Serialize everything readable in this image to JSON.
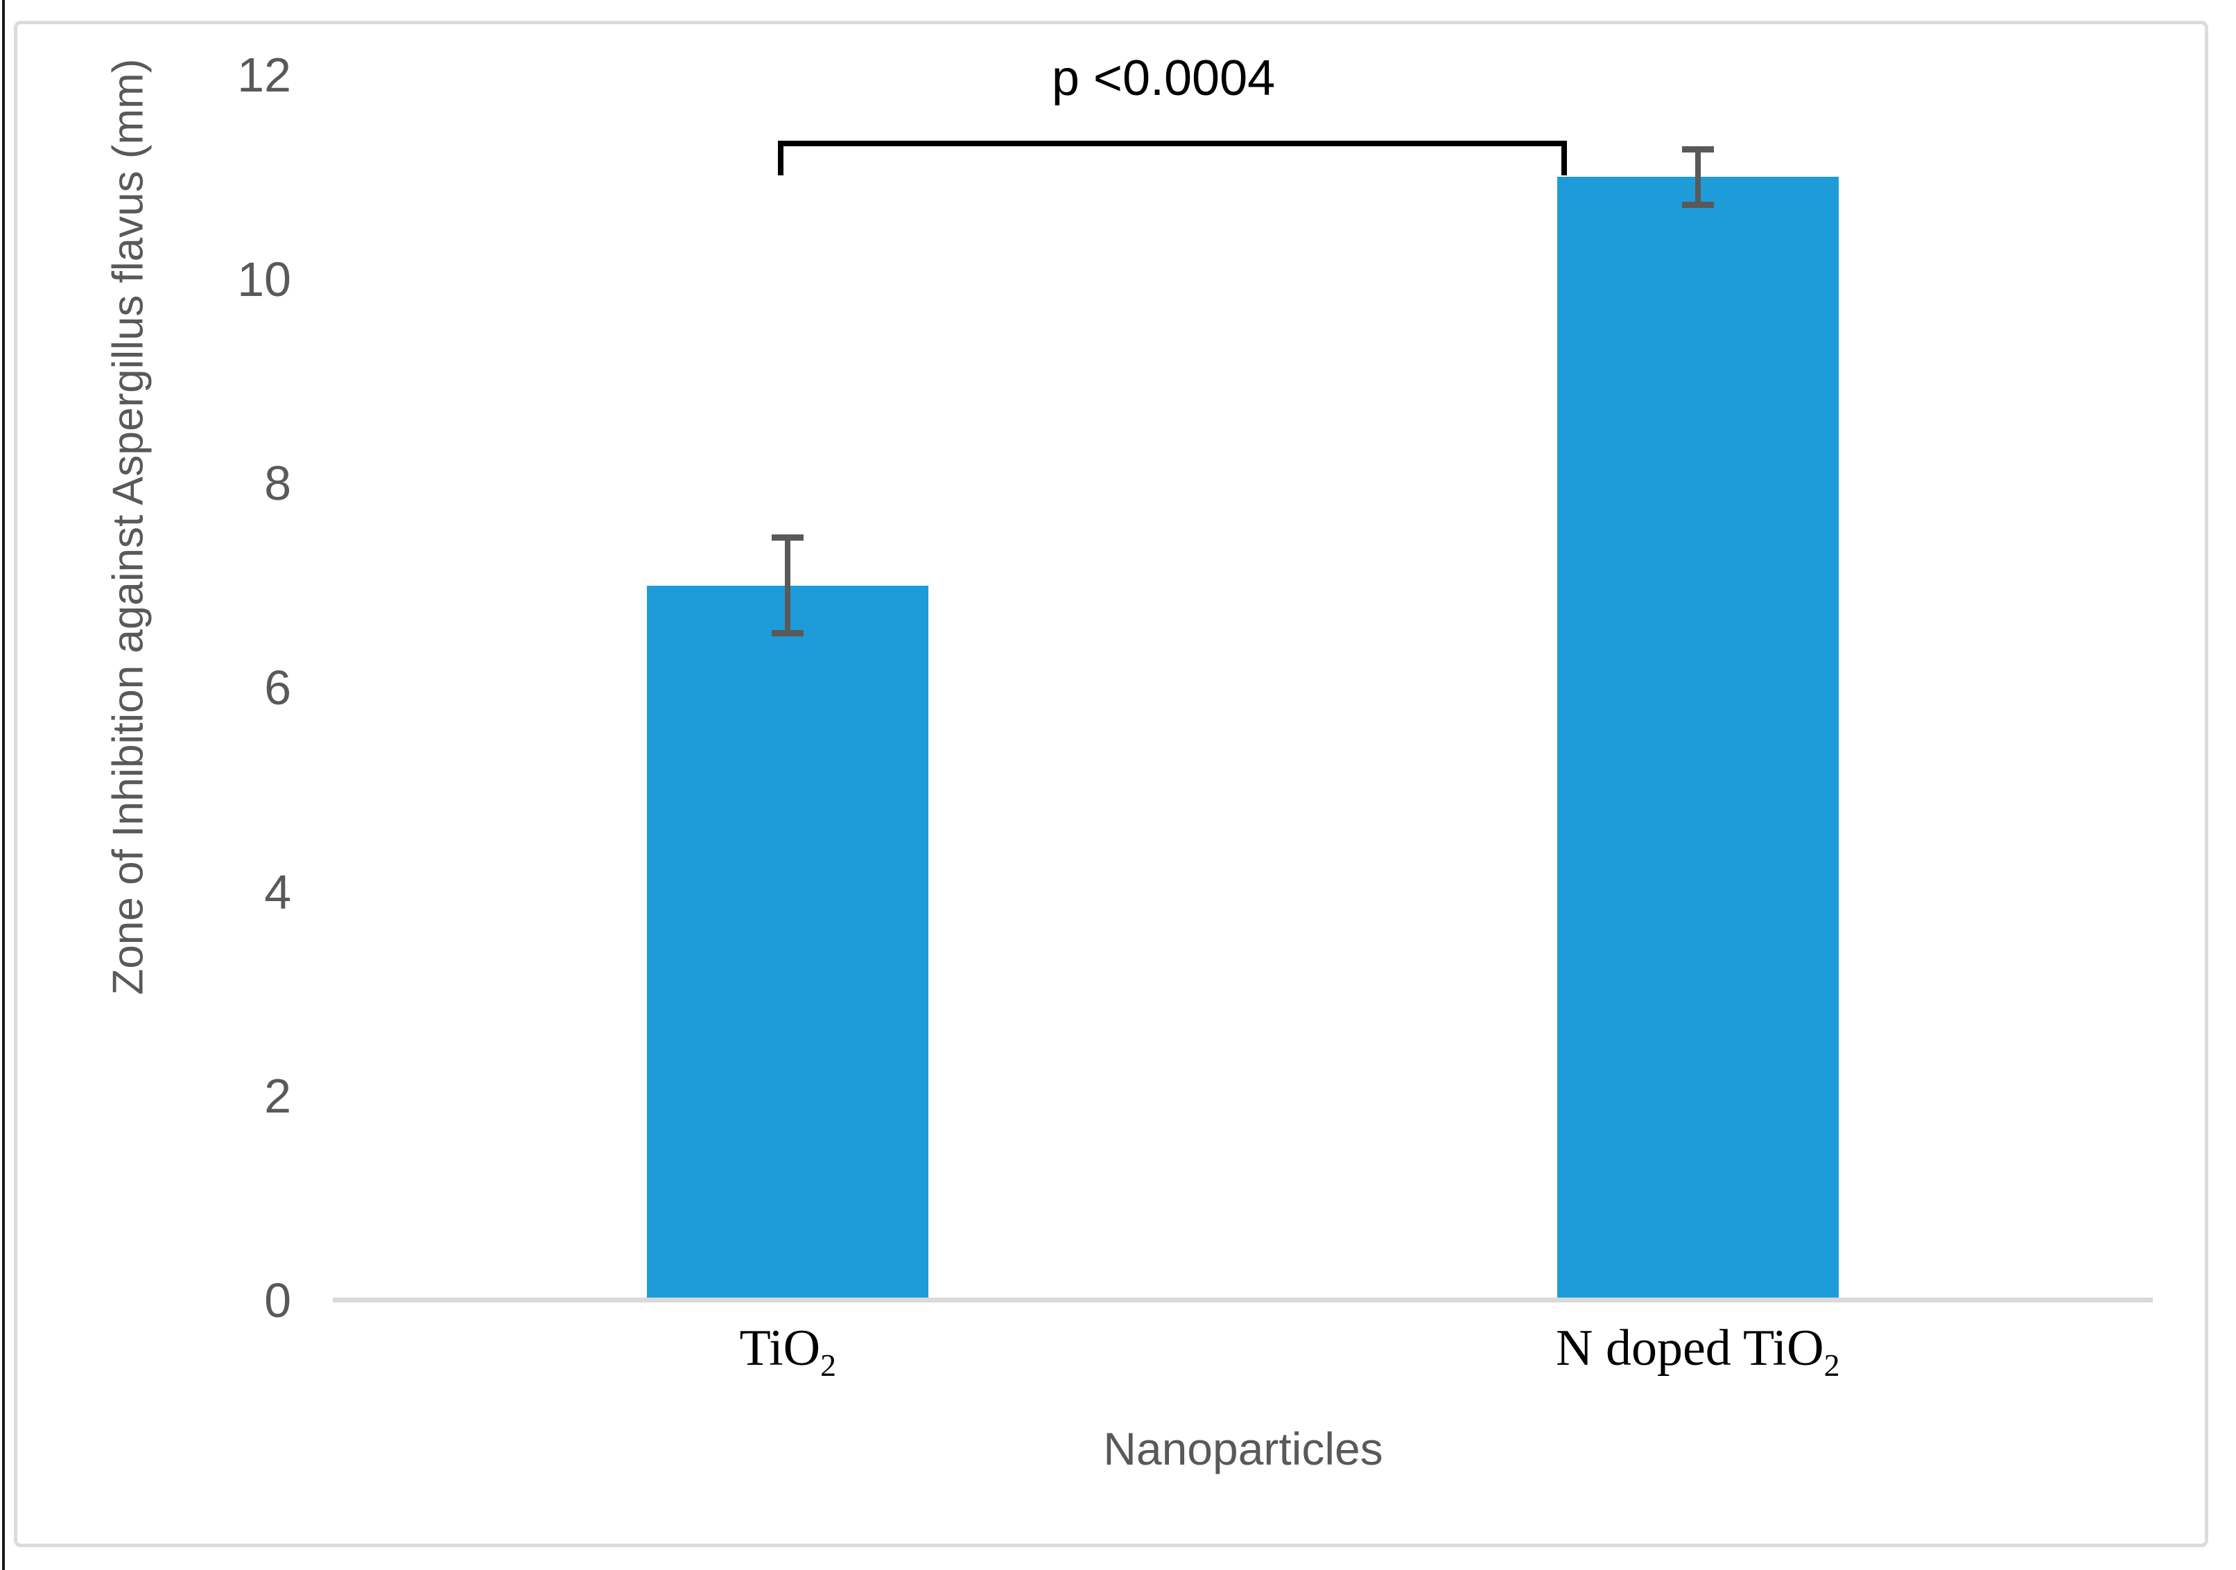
{
  "chart_data": {
    "type": "bar",
    "title": "",
    "categories": [
      "TiO2",
      "N doped TiO2"
    ],
    "categories_rich": [
      {
        "base": "TiO",
        "sub": "2"
      },
      {
        "base": "N doped TiO",
        "sub": "2"
      }
    ],
    "values": [
      7,
      11
    ],
    "errors": [
      0.5,
      0.3
    ],
    "xlabel": "Nanoparticles",
    "ylabel": "Zone of Inhibition against Aspergillus flavus (mm)",
    "ylim": [
      0,
      12
    ],
    "yticks": [
      0,
      2,
      4,
      6,
      8,
      10,
      12
    ],
    "grid": false,
    "legend": "none",
    "annotation": {
      "text": "p <0.0004",
      "between": [
        "TiO2",
        "N doped TiO2"
      ]
    },
    "colors": {
      "bar": "#1E9CD9",
      "error_bar": "#595959",
      "axis_line": "#D9D9D9",
      "tick_text": "#595959",
      "axis_title_text": "#595959",
      "category_text": "#000000",
      "annotation_text": "#000000",
      "chart_border": "#DBDBDB",
      "page_edge": "#1A1A1A"
    }
  }
}
